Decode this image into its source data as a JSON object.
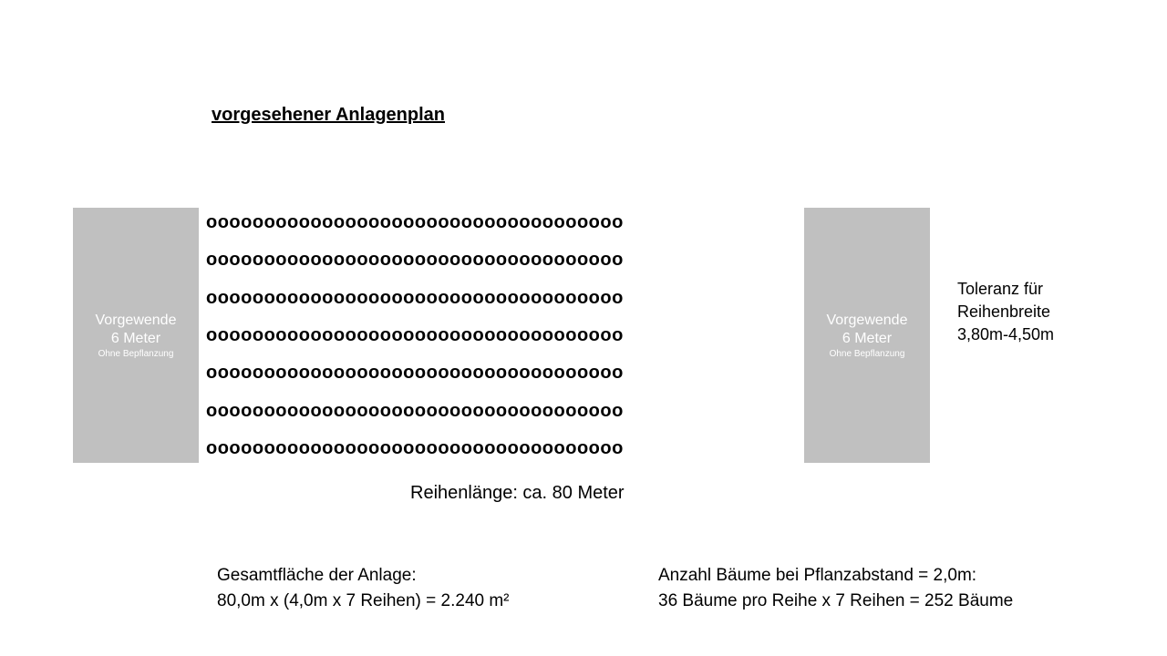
{
  "title": "vorgesehener Anlagenplan",
  "diagram": {
    "type": "infographic",
    "headland_left": {
      "line1": "Vorgewende",
      "line2": "6 Meter",
      "line3": "Ohne Bepflanzung",
      "bg_color": "#c0c0c0",
      "text_color": "#ffffff"
    },
    "headland_right": {
      "line1": "Vorgewende",
      "line2": "6 Meter",
      "line3": "Ohne Bepflanzung",
      "bg_color": "#c0c0c0",
      "text_color": "#ffffff"
    },
    "tree_rows": {
      "num_rows": 7,
      "trees_per_row": 36,
      "tree_glyph": "o",
      "glyph_color": "#000000",
      "glyph_fontsize": 20
    },
    "row_length_label": "Reihenlänge: ca. 80 Meter",
    "tolerance": {
      "line1": "Toleranz für",
      "line2": "Reihenbreite",
      "line3": "3,80m-4,50m"
    }
  },
  "calculations": {
    "area": {
      "label": "Gesamtfläche der Anlage:",
      "formula": "80,0m x (4,0m x 7 Reihen) = 2.240 m²"
    },
    "trees": {
      "label": "Anzahl Bäume bei Pflanzabstand = 2,0m:",
      "formula": "36 Bäume pro Reihe x 7 Reihen = 252 Bäume"
    }
  },
  "colors": {
    "background": "#ffffff",
    "text": "#000000",
    "headland_bg": "#c0c0c0",
    "headland_text": "#ffffff"
  },
  "typography": {
    "title_fontsize": 20,
    "title_weight": "bold",
    "body_fontsize": 19,
    "tolerance_fontsize": 18,
    "headland_main_fontsize": 16,
    "headland_sub_fontsize": 10
  }
}
